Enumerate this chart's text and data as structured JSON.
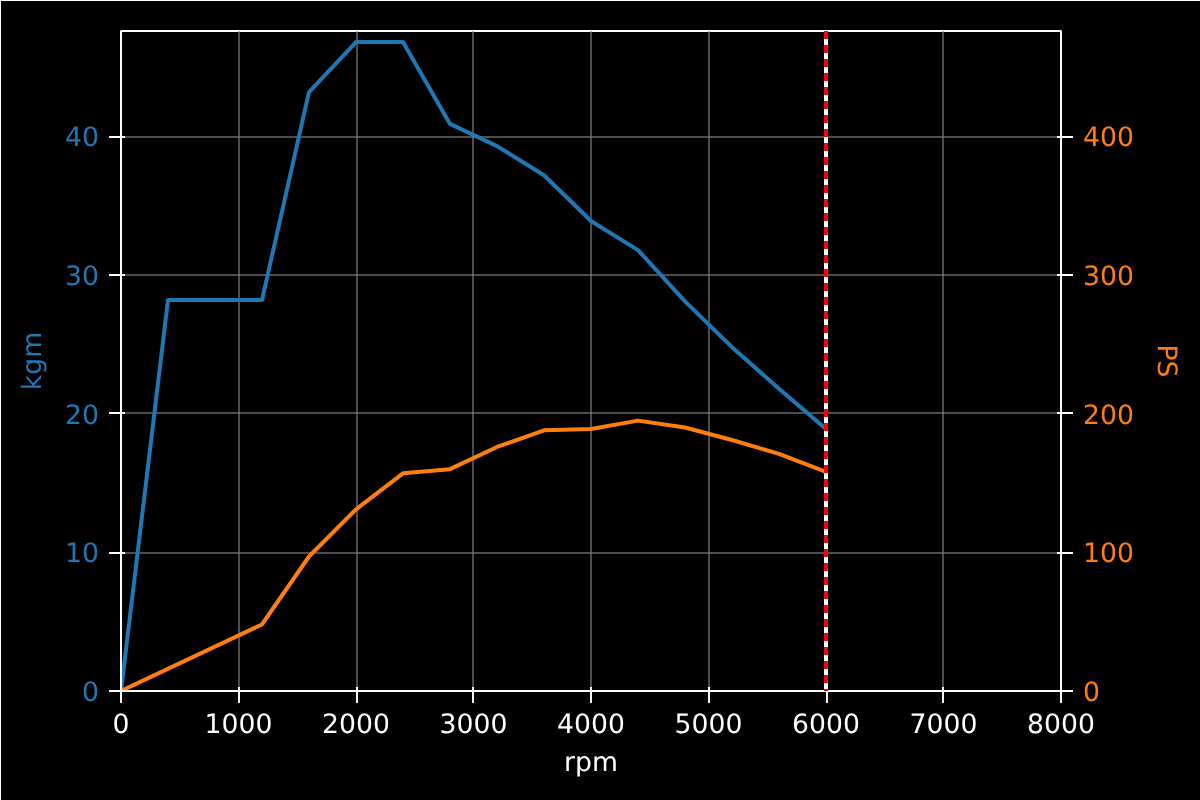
{
  "chart_data": {
    "type": "line",
    "xlabel": "rpm",
    "ylabel": "kgm",
    "y2label": "PS",
    "x": [
      0,
      400,
      1200,
      1600,
      2000,
      2400,
      2800,
      3200,
      3600,
      4000,
      4400,
      4800,
      5200,
      5600,
      6000
    ],
    "series": [
      {
        "color": "#1f77b4",
        "values": [
          0,
          28.2,
          28.2,
          43.2,
          46.8,
          46.8,
          40.9,
          39.3,
          37.2,
          33.9,
          31.8,
          28.1,
          24.8,
          21.8,
          18.9
        ]
      },
      {
        "color": "#ff7f0e",
        "axis": "y2",
        "x": [
          0,
          1200,
          1600,
          2000,
          2400,
          2800,
          3200,
          3600,
          4000,
          4400,
          4800,
          5200,
          5600,
          6000
        ],
        "values": [
          0,
          48,
          97,
          131,
          157,
          160,
          176,
          188,
          189,
          195,
          190,
          181,
          171,
          158
        ]
      }
    ],
    "xlim": [
      0,
      8000
    ],
    "xticks": [
      0,
      1000,
      2000,
      3000,
      4000,
      5000,
      6000,
      7000,
      8000
    ],
    "ylim": [
      0,
      47.6
    ],
    "yticks": [
      0,
      10,
      20,
      30,
      40
    ],
    "y2lim": [
      0,
      476
    ],
    "y2ticks": [
      0,
      100,
      200,
      300,
      400
    ],
    "ref_lines": [
      {
        "axis": "x",
        "value": 6000,
        "color": "#ffffff",
        "line_style": "solid"
      },
      {
        "axis": "x",
        "value": 6000,
        "color": "#ff0000",
        "line_style": "dashed"
      }
    ],
    "grid": true,
    "line_style": "solid",
    "marker": "none"
  }
}
